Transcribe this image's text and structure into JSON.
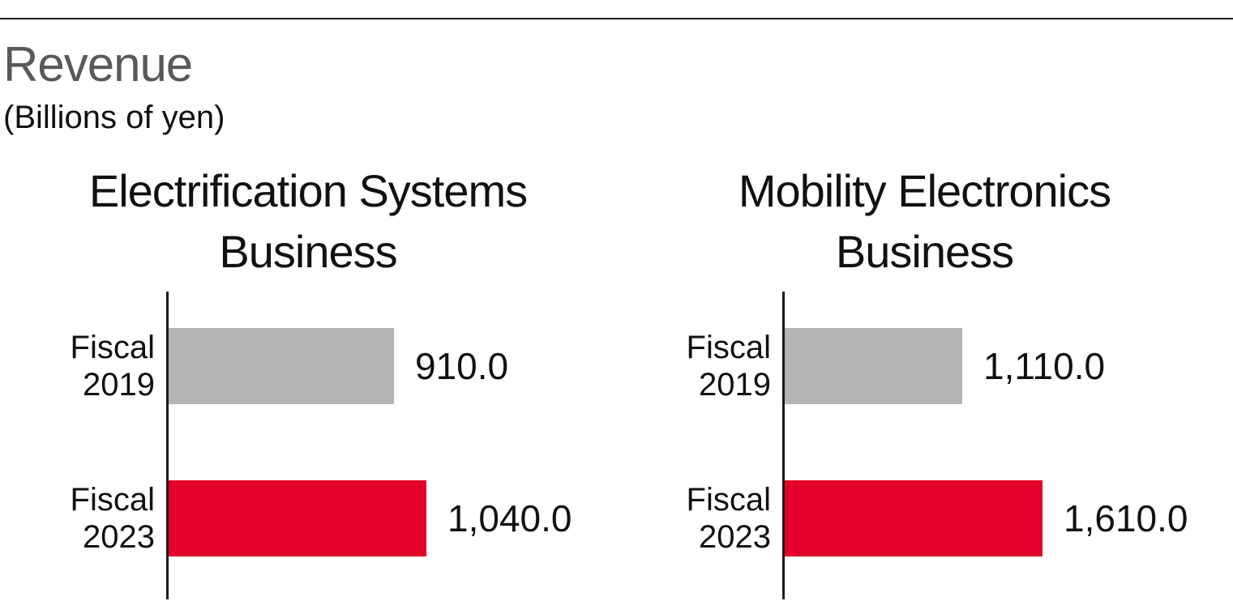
{
  "page": {
    "title": "Revenue",
    "subtitle": "(Billions of yen)"
  },
  "colors": {
    "fiscal_2019_bar": "#b4b4b4",
    "fiscal_2023_bar": "#e4002b",
    "title_gray": "#58595b",
    "text": "#111111",
    "rule": "#1a1a1a"
  },
  "chart_data": [
    {
      "type": "bar",
      "orientation": "horizontal",
      "title": "Electrification Systems Business",
      "title_lines": [
        "Electrification Systems",
        "Business"
      ],
      "unit": "Billions of yen",
      "categories": [
        "Fiscal 2019",
        "Fiscal 2023"
      ],
      "values": [
        910.0,
        1040.0
      ],
      "value_labels": [
        "910.0",
        "1,040.0"
      ],
      "colors": [
        "#b4b4b4",
        "#e4002b"
      ],
      "xlim": [
        0,
        1040
      ],
      "grid": false,
      "legend": false
    },
    {
      "type": "bar",
      "orientation": "horizontal",
      "title": "Mobility Electronics Business",
      "title_lines": [
        "Mobility Electronics",
        "Business"
      ],
      "unit": "Billions of yen",
      "categories": [
        "Fiscal 2019",
        "Fiscal 2023"
      ],
      "values": [
        1110.0,
        1610.0
      ],
      "value_labels": [
        "1,110.0",
        "1,610.0"
      ],
      "colors": [
        "#b4b4b4",
        "#e4002b"
      ],
      "xlim": [
        0,
        1610
      ],
      "grid": false,
      "legend": false
    }
  ]
}
